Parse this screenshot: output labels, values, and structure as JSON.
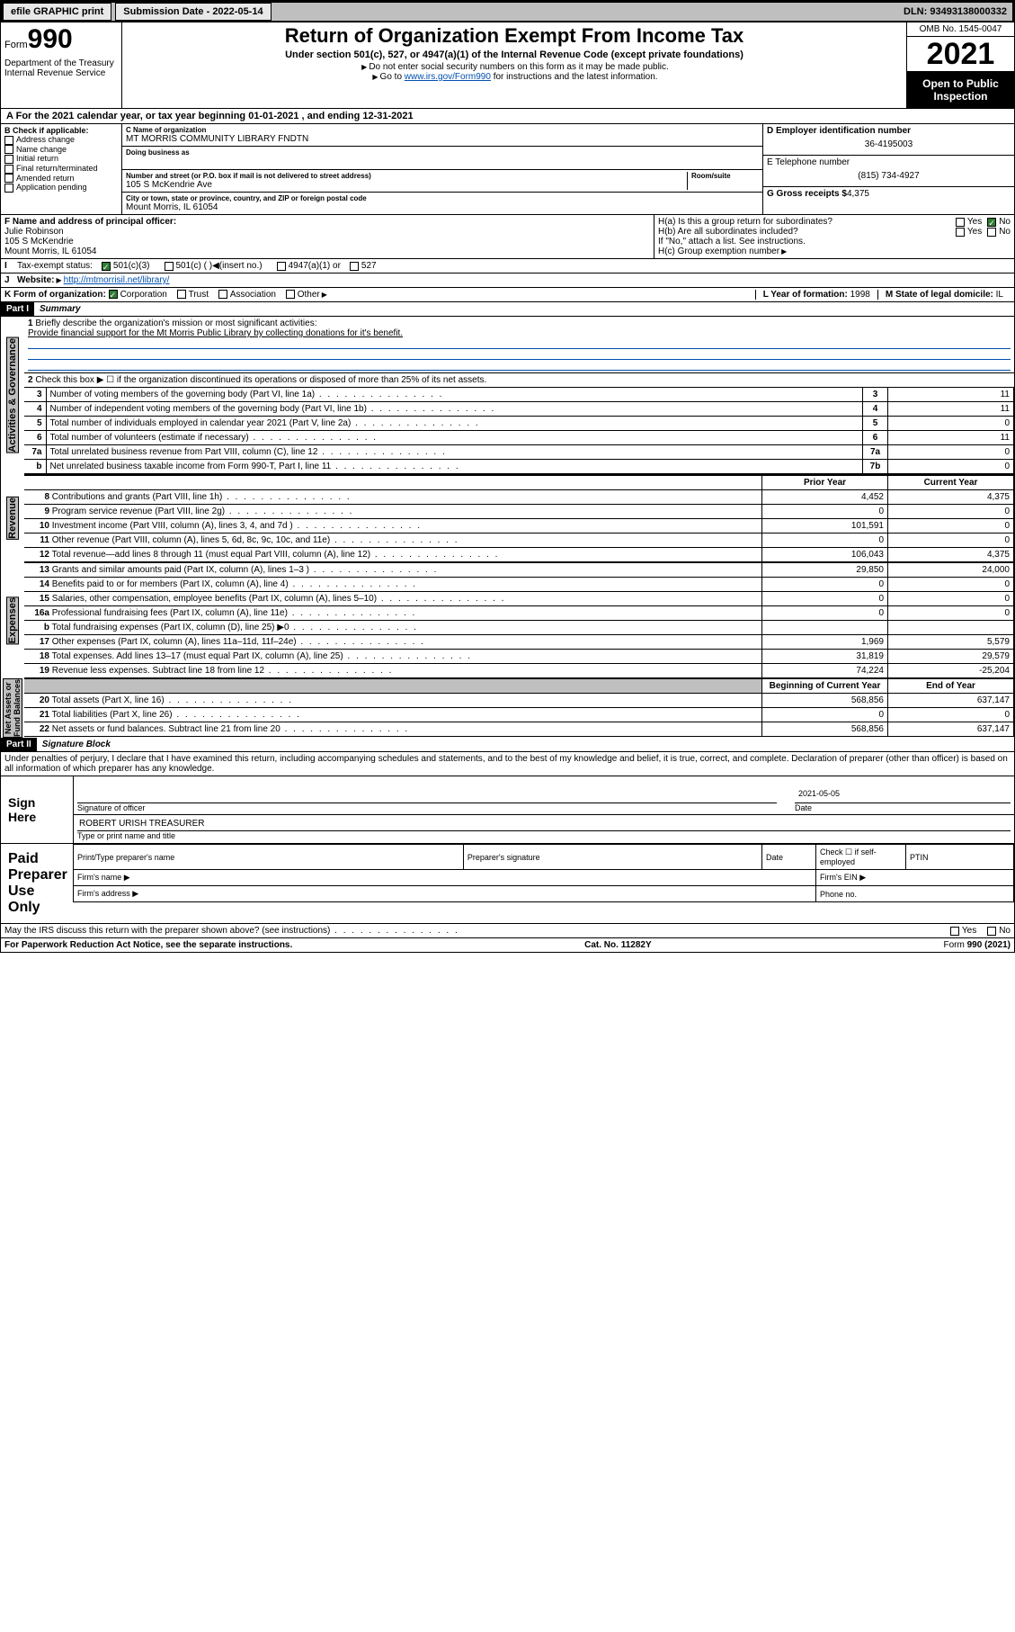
{
  "topbar": {
    "efile": "efile GRAPHIC print",
    "submission_label": "Submission Date - 2022-05-14",
    "dln": "DLN: 93493138000332"
  },
  "header": {
    "form_prefix": "Form",
    "form_num": "990",
    "dept": "Department of the Treasury\nInternal Revenue Service",
    "title": "Return of Organization Exempt From Income Tax",
    "subtitle": "Under section 501(c), 527, or 4947(a)(1) of the Internal Revenue Code (except private foundations)",
    "note1": "Do not enter social security numbers on this form as it may be made public.",
    "note2_pre": "Go to ",
    "note2_link": "www.irs.gov/Form990",
    "note2_post": " for instructions and the latest information.",
    "omb": "OMB No. 1545-0047",
    "year": "2021",
    "open": "Open to Public Inspection"
  },
  "period": "For the 2021 calendar year, or tax year beginning 01-01-2021     , and ending 12-31-2021",
  "section_b": {
    "header": "B Check if applicable:",
    "items": [
      "Address change",
      "Name change",
      "Initial return",
      "Final return/terminated",
      "Amended return",
      "Application pending"
    ]
  },
  "section_c": {
    "name_lbl": "C Name of organization",
    "name": "MT MORRIS COMMUNITY LIBRARY FNDTN",
    "dba_lbl": "Doing business as",
    "street_lbl": "Number and street (or P.O. box if mail is not delivered to street address)",
    "street": "105 S McKendrie Ave",
    "room_lbl": "Room/suite",
    "city_lbl": "City or town, state or province, country, and ZIP or foreign postal code",
    "city": "Mount Morris, IL  61054"
  },
  "section_d": {
    "ein_lbl": "D Employer identification number",
    "ein": "36-4195003",
    "phone_lbl": "E Telephone number",
    "phone": "(815) 734-4927",
    "gross_lbl": "G Gross receipts $",
    "gross": "4,375"
  },
  "section_f": {
    "lbl": "F Name and address of principal officer:",
    "name": "Julie Robinson",
    "addr1": "105 S McKendrie",
    "addr2": "Mount Morris, IL  61054"
  },
  "section_h": {
    "a": "H(a)  Is this a group return for subordinates?",
    "b": "H(b)  Are all subordinates included?",
    "b_note": "If \"No,\" attach a list. See instructions.",
    "c": "H(c)  Group exemption number",
    "yes": "Yes",
    "no": "No"
  },
  "section_i": {
    "lbl": "Tax-exempt status:",
    "opt1": "501(c)(3)",
    "opt2": "501(c) (  )",
    "opt2_note": "(insert no.)",
    "opt3": "4947(a)(1) or",
    "opt4": "527"
  },
  "section_j": {
    "lbl": "Website:",
    "url": "http://mtmorrisil.net/library/"
  },
  "section_k": {
    "lbl": "K Form of organization:",
    "opts": [
      "Corporation",
      "Trust",
      "Association",
      "Other"
    ]
  },
  "section_l": {
    "lbl": "L Year of formation:",
    "val": "1998"
  },
  "section_m": {
    "lbl": "M State of legal domicile:",
    "val": "IL"
  },
  "part1": {
    "header": "Part I",
    "title": "Summary",
    "line1_lbl": "Briefly describe the organization's mission or most significant activities:",
    "line1_val": "Provide financial support for the Mt Morris Public Library by collecting donations for it's benefit.",
    "line2": "Check this box ▶ ☐ if the organization discontinued its operations or disposed of more than 25% of its net assets.",
    "rows_gov": [
      {
        "n": "3",
        "txt": "Number of voting members of the governing body (Part VI, line 1a)",
        "box": "3",
        "val": "11"
      },
      {
        "n": "4",
        "txt": "Number of independent voting members of the governing body (Part VI, line 1b)",
        "box": "4",
        "val": "11"
      },
      {
        "n": "5",
        "txt": "Total number of individuals employed in calendar year 2021 (Part V, line 2a)",
        "box": "5",
        "val": "0"
      },
      {
        "n": "6",
        "txt": "Total number of volunteers (estimate if necessary)",
        "box": "6",
        "val": "11"
      },
      {
        "n": "7a",
        "txt": "Total unrelated business revenue from Part VIII, column (C), line 12",
        "box": "7a",
        "val": "0"
      },
      {
        "n": "b",
        "txt": "Net unrelated business taxable income from Form 990-T, Part I, line 11",
        "box": "7b",
        "val": "0"
      }
    ],
    "col_headers": {
      "prior": "Prior Year",
      "current": "Current Year",
      "begin": "Beginning of Current Year",
      "end": "End of Year"
    },
    "rows_rev": [
      {
        "n": "8",
        "txt": "Contributions and grants (Part VIII, line 1h)",
        "p": "4,452",
        "c": "4,375"
      },
      {
        "n": "9",
        "txt": "Program service revenue (Part VIII, line 2g)",
        "p": "0",
        "c": "0"
      },
      {
        "n": "10",
        "txt": "Investment income (Part VIII, column (A), lines 3, 4, and 7d )",
        "p": "101,591",
        "c": "0"
      },
      {
        "n": "11",
        "txt": "Other revenue (Part VIII, column (A), lines 5, 6d, 8c, 9c, 10c, and 11e)",
        "p": "0",
        "c": "0"
      },
      {
        "n": "12",
        "txt": "Total revenue—add lines 8 through 11 (must equal Part VIII, column (A), line 12)",
        "p": "106,043",
        "c": "4,375"
      }
    ],
    "rows_exp": [
      {
        "n": "13",
        "txt": "Grants and similar amounts paid (Part IX, column (A), lines 1–3 )",
        "p": "29,850",
        "c": "24,000"
      },
      {
        "n": "14",
        "txt": "Benefits paid to or for members (Part IX, column (A), line 4)",
        "p": "0",
        "c": "0"
      },
      {
        "n": "15",
        "txt": "Salaries, other compensation, employee benefits (Part IX, column (A), lines 5–10)",
        "p": "0",
        "c": "0"
      },
      {
        "n": "16a",
        "txt": "Professional fundraising fees (Part IX, column (A), line 11e)",
        "p": "0",
        "c": "0"
      },
      {
        "n": "b",
        "txt": "Total fundraising expenses (Part IX, column (D), line 25) ▶0",
        "p": "",
        "c": "",
        "shaded": true
      },
      {
        "n": "17",
        "txt": "Other expenses (Part IX, column (A), lines 11a–11d, 11f–24e)",
        "p": "1,969",
        "c": "5,579"
      },
      {
        "n": "18",
        "txt": "Total expenses. Add lines 13–17 (must equal Part IX, column (A), line 25)",
        "p": "31,819",
        "c": "29,579"
      },
      {
        "n": "19",
        "txt": "Revenue less expenses. Subtract line 18 from line 12",
        "p": "74,224",
        "c": "-25,204"
      }
    ],
    "rows_net": [
      {
        "n": "20",
        "txt": "Total assets (Part X, line 16)",
        "p": "568,856",
        "c": "637,147"
      },
      {
        "n": "21",
        "txt": "Total liabilities (Part X, line 26)",
        "p": "0",
        "c": "0"
      },
      {
        "n": "22",
        "txt": "Net assets or fund balances. Subtract line 21 from line 20",
        "p": "568,856",
        "c": "637,147"
      }
    ],
    "vert_labels": {
      "gov": "Activities & Governance",
      "rev": "Revenue",
      "exp": "Expenses",
      "net": "Net Assets or\nFund Balances"
    }
  },
  "part2": {
    "header": "Part II",
    "title": "Signature Block",
    "perjury": "Under penalties of perjury, I declare that I have examined this return, including accompanying schedules and statements, and to the best of my knowledge and belief, it is true, correct, and complete. Declaration of preparer (other than officer) is based on all information of which preparer has any knowledge.",
    "sign_here": "Sign Here",
    "sig_officer": "Signature of officer",
    "sig_date_lbl": "Date",
    "sig_date": "2021-05-05",
    "officer_name": "ROBERT URISH  TREASURER",
    "type_name": "Type or print name and title",
    "paid_prep": "Paid Preparer Use Only",
    "prep_headers": [
      "Print/Type preparer's name",
      "Preparer's signature",
      "Date",
      "Check ☐ if self-employed",
      "PTIN"
    ],
    "firm_name": "Firm's name ▶",
    "firm_ein": "Firm's EIN ▶",
    "firm_addr": "Firm's address ▶",
    "firm_phone": "Phone no.",
    "discuss": "May the IRS discuss this return with the preparer shown above? (see instructions)"
  },
  "footer": {
    "left": "For Paperwork Reduction Act Notice, see the separate instructions.",
    "mid": "Cat. No. 11282Y",
    "right": "Form 990 (2021)"
  }
}
